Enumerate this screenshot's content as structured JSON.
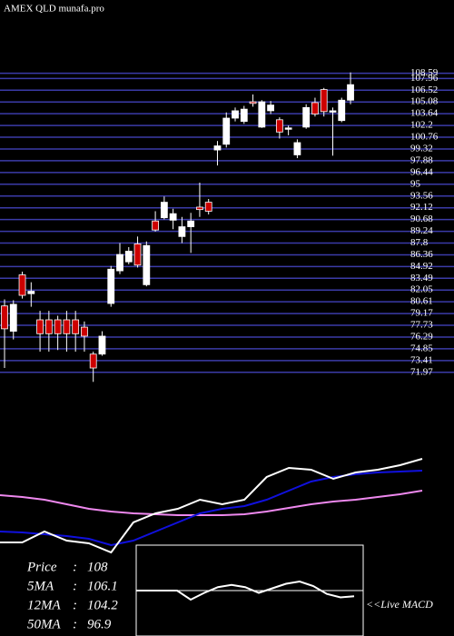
{
  "chart_data": [
    {
      "type": "candlestick",
      "title": "AMEX  QLD munafa.pro",
      "open": [
        80.1,
        77.0,
        83.9,
        81.6,
        78.4,
        78.4,
        78.4,
        78.4,
        78.4,
        77.5,
        74.2,
        74.2,
        80.4,
        84.4,
        85.5,
        87.7,
        82.7,
        90.5,
        90.9,
        90.6,
        88.6,
        89.8,
        92.2,
        92.8,
        99.2,
        99.9,
        103.1,
        102.7,
        105.1,
        102.0,
        104.0,
        102.9,
        101.8,
        98.6,
        102.0,
        105.0,
        106.6,
        103.9,
        102.8,
        105.3
      ],
      "high": [
        80.9,
        80.8,
        84.3,
        83.0,
        79.5,
        79.5,
        78.9,
        79.5,
        79.5,
        78.2,
        74.5,
        77.0,
        85.0,
        87.8,
        87.3,
        88.6,
        88.0,
        91.7,
        93.5,
        92.0,
        91.0,
        91.5,
        95.2,
        93.2,
        100.3,
        103.8,
        104.4,
        104.6,
        106.0,
        105.3,
        105.2,
        103.2,
        102.2,
        100.5,
        104.8,
        105.6,
        106.8,
        104.4,
        105.6,
        108.7
      ],
      "low": [
        72.5,
        76.0,
        81.0,
        80.0,
        74.5,
        74.5,
        74.7,
        74.5,
        74.5,
        74.5,
        70.8,
        74.0,
        80.0,
        84.0,
        85.2,
        84.8,
        82.5,
        89.2,
        90.7,
        89.5,
        87.8,
        86.6,
        91.0,
        91.3,
        97.3,
        99.5,
        102.7,
        102.4,
        104.5,
        101.9,
        103.6,
        100.6,
        101.0,
        98.2,
        101.8,
        103.3,
        103.3,
        98.5,
        102.6,
        104.8
      ],
      "close": [
        77.3,
        80.3,
        81.4,
        81.9,
        76.7,
        76.7,
        76.7,
        76.7,
        76.7,
        76.4,
        72.5,
        76.4,
        84.6,
        86.4,
        86.8,
        85.1,
        87.5,
        89.4,
        92.8,
        91.4,
        89.8,
        90.5,
        91.9,
        91.7,
        99.7,
        103.1,
        104.0,
        104.2,
        104.9,
        105.1,
        104.7,
        101.4,
        101.9,
        100.1,
        104.4,
        103.6,
        103.9,
        104.0,
        105.3,
        107.2
      ],
      "up_color": "#ffffff",
      "down_color": "#cc0000",
      "grid_color": "#3b3ba8",
      "ylim": [
        70.5,
        110
      ],
      "yticks": [
        108.59,
        107.96,
        106.52,
        105.08,
        103.64,
        102.2,
        100.76,
        99.32,
        97.88,
        96.44,
        95,
        93.56,
        92.12,
        90.68,
        89.24,
        87.8,
        86.36,
        84.92,
        83.49,
        82.05,
        80.61,
        79.17,
        77.73,
        76.29,
        74.85,
        73.41,
        71.97
      ],
      "grid": true
    },
    {
      "type": "line",
      "x": [
        0,
        25,
        50,
        75,
        100,
        125,
        150,
        175,
        200,
        225,
        250,
        275,
        300,
        325,
        350,
        375,
        400,
        425,
        450,
        475
      ],
      "xlim": [
        0,
        475
      ],
      "ylim": [
        0,
        160
      ],
      "series": [
        {
          "color": "#ee88ee",
          "values": [
            95,
            93,
            90,
            85,
            80,
            77,
            75,
            74,
            73,
            73,
            73,
            74,
            77,
            81,
            85,
            88,
            90,
            93,
            96,
            100
          ]
        },
        {
          "color": "#1010dd",
          "values": [
            55,
            54,
            52,
            50,
            47,
            40,
            45,
            55,
            65,
            75,
            80,
            83,
            90,
            100,
            110,
            115,
            118,
            120,
            121,
            122
          ]
        },
        {
          "color": "#ffffff",
          "values": [
            43,
            43,
            55,
            45,
            42,
            32,
            65,
            75,
            80,
            90,
            85,
            90,
            115,
            125,
            123,
            113,
            120,
            123,
            128,
            135
          ]
        }
      ]
    },
    {
      "type": "line",
      "x": [
        0,
        1,
        2,
        3,
        4,
        5,
        6,
        7,
        8,
        9,
        10,
        11,
        12,
        13,
        14,
        15,
        16
      ],
      "xlim": [
        0,
        16
      ],
      "ylim": [
        -40,
        40
      ],
      "series": [
        {
          "color": "#ffffff",
          "values": [
            0,
            0,
            0,
            0,
            -8,
            -2,
            3,
            5,
            3,
            -2,
            2,
            6,
            8,
            4,
            -3,
            -6,
            -5
          ]
        }
      ]
    }
  ],
  "stats": [
    {
      "label": "Price",
      "value": 108
    },
    {
      "label": "5MA",
      "value": 106.1
    },
    {
      "label": "12MA",
      "value": 104.2
    },
    {
      "label": "50MA",
      "value": 96.9
    }
  ],
  "macd_label": "<<Live MACD"
}
